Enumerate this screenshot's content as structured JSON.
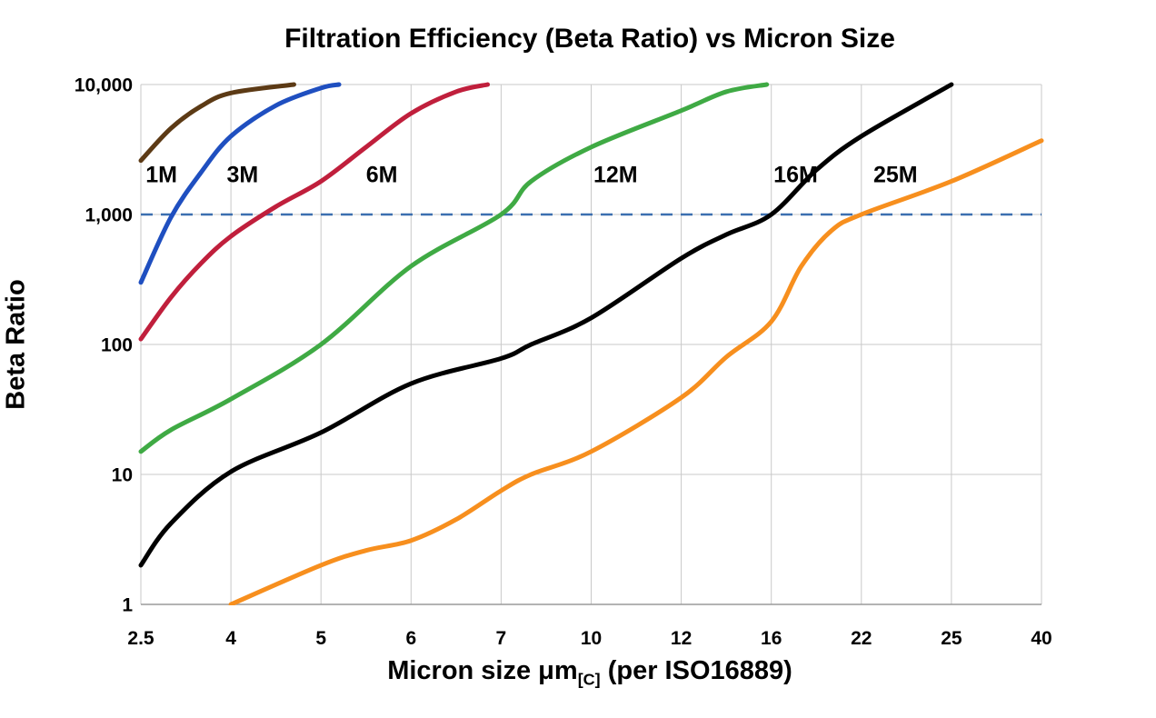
{
  "title": "Filtration Efficiency (Beta Ratio) vs Micron Size",
  "ylabel": "Beta Ratio",
  "xlabel": {
    "main": "Micron size μm",
    "sub": "[C]",
    "rest": " (per ISO16889)"
  },
  "chart_data": {
    "type": "line",
    "title": "Filtration Efficiency (Beta Ratio) vs Micron Size",
    "xlabel": "Micron size μm[C] (per ISO16889)",
    "ylabel": "Beta Ratio",
    "x_scale": "categorical-equal-spacing",
    "y_scale": "log",
    "ylim": [
      1,
      10000
    ],
    "grid": true,
    "grid_color": "#c9c9c9",
    "x_categories": [
      2.5,
      4,
      5,
      6,
      7,
      10,
      12,
      16,
      22,
      25,
      40
    ],
    "x_tick_labels": [
      "2.5",
      "4",
      "5",
      "6",
      "7",
      "10",
      "12",
      "16",
      "22",
      "25",
      "40"
    ],
    "y_ticks": [
      {
        "value": 1,
        "label": "1"
      },
      {
        "value": 10,
        "label": "10"
      },
      {
        "value": 100,
        "label": "100"
      },
      {
        "value": 1000,
        "label": "1,000"
      },
      {
        "value": 10000,
        "label": "10,000"
      }
    ],
    "reference_line": {
      "beta": 1000,
      "color": "#3c6fb0",
      "style": "dashed"
    },
    "series": [
      {
        "name": "1M",
        "color": "#5c3a15",
        "label_pos": {
          "micron": 2.58,
          "beta": 2050
        },
        "points": [
          [
            2.5,
            2600
          ],
          [
            3,
            4600
          ],
          [
            3.5,
            6800
          ],
          [
            4,
            8600
          ],
          [
            4.7,
            10000
          ]
        ]
      },
      {
        "name": "3M",
        "color": "#1f4fc0",
        "label_pos": {
          "micron": 3.93,
          "beta": 2050
        },
        "points": [
          [
            2.5,
            300
          ],
          [
            3,
            950
          ],
          [
            3.5,
            2100
          ],
          [
            4,
            4000
          ],
          [
            4.5,
            6900
          ],
          [
            5,
            9400
          ],
          [
            5.2,
            10000
          ]
        ]
      },
      {
        "name": "6M",
        "color": "#c01f3c",
        "label_pos": {
          "micron": 5.5,
          "beta": 2050
        },
        "points": [
          [
            2.5,
            110
          ],
          [
            3,
            230
          ],
          [
            3.5,
            420
          ],
          [
            4,
            680
          ],
          [
            4.5,
            1150
          ],
          [
            5,
            1800
          ],
          [
            5.5,
            3300
          ],
          [
            6,
            6000
          ],
          [
            6.5,
            8800
          ],
          [
            6.85,
            10000
          ]
        ]
      },
      {
        "name": "12M",
        "color": "#3faa44",
        "label_pos": {
          "micron": 10.05,
          "beta": 2050
        },
        "points": [
          [
            2.5,
            15
          ],
          [
            3,
            22
          ],
          [
            4,
            38
          ],
          [
            5,
            100
          ],
          [
            6,
            400
          ],
          [
            7,
            1000
          ],
          [
            8,
            1800
          ],
          [
            10,
            3300
          ],
          [
            12,
            6300
          ],
          [
            14,
            8800
          ],
          [
            15.8,
            10000
          ]
        ]
      },
      {
        "name": "16M",
        "color": "#000000",
        "label_pos": {
          "micron": 16.15,
          "beta": 2050
        },
        "points": [
          [
            2.5,
            2
          ],
          [
            3,
            4.2
          ],
          [
            4,
            10.5
          ],
          [
            5,
            21
          ],
          [
            6,
            50
          ],
          [
            7,
            78
          ],
          [
            8,
            100
          ],
          [
            10,
            160
          ],
          [
            12,
            460
          ],
          [
            14,
            700
          ],
          [
            16,
            1000
          ],
          [
            19,
            2200
          ],
          [
            22,
            4000
          ],
          [
            25,
            10000
          ]
        ]
      },
      {
        "name": "25M",
        "color": "#f78f1e",
        "label_pos": {
          "micron": 22.4,
          "beta": 2050
        },
        "points": [
          [
            4,
            1
          ],
          [
            5,
            2
          ],
          [
            5.5,
            2.6
          ],
          [
            6,
            3.1
          ],
          [
            6.5,
            4.5
          ],
          [
            7,
            7.5
          ],
          [
            8,
            10
          ],
          [
            10,
            15
          ],
          [
            12,
            39
          ],
          [
            14,
            80
          ],
          [
            16,
            150
          ],
          [
            18,
            400
          ],
          [
            20,
            750
          ],
          [
            22,
            1000
          ],
          [
            25,
            1800
          ],
          [
            40,
            3700
          ]
        ]
      }
    ]
  }
}
